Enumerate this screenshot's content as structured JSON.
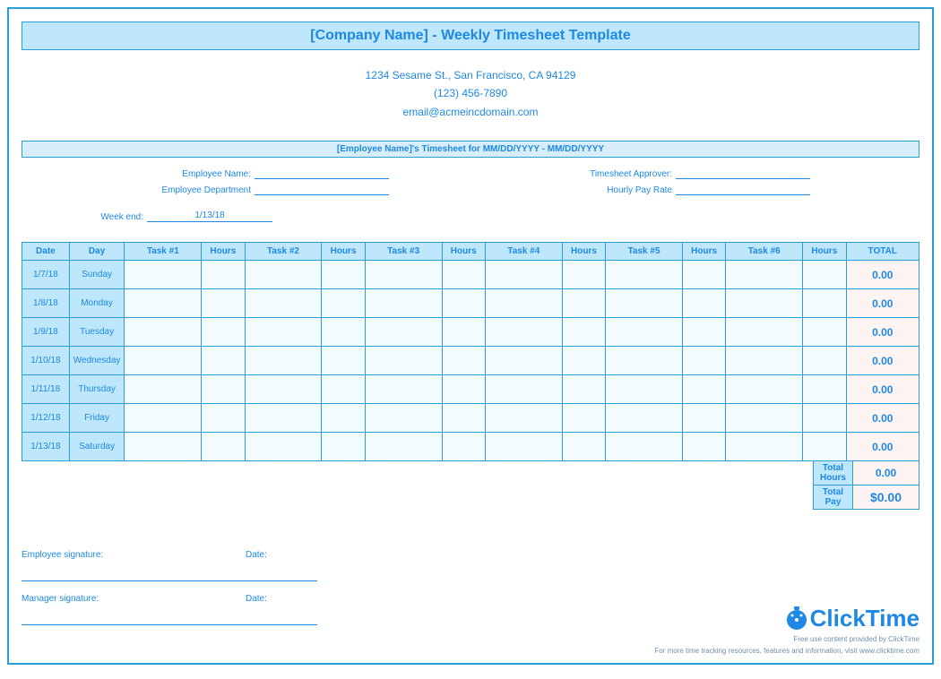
{
  "title": "[Company Name] - Weekly Timesheet Template",
  "company": {
    "address": "1234 Sesame St.,  San Francisco, CA 94129",
    "phone": "(123) 456-7890",
    "email": "email@acmeincdomain.com"
  },
  "subheader": "[Employee Name]'s Timesheet for MM/DD/YYYY - MM/DD/YYYY",
  "fields": {
    "employee_name_label": "Employee Name:",
    "employee_department_label": "Employee Department",
    "timesheet_approver_label": "Timesheet Approver:",
    "hourly_pay_rate_label": "Hourly Pay Rate",
    "week_end_label": "Week end:",
    "week_end_value": "1/13/18"
  },
  "table": {
    "headers": [
      "Date",
      "Day",
      "Task #1",
      "Hours",
      "Task #2",
      "Hours",
      "Task #3",
      "Hours",
      "Task #4",
      "Hours",
      "Task #5",
      "Hours",
      "Task #6",
      "Hours",
      "TOTAL"
    ],
    "rows": [
      {
        "date": "1/7/18",
        "day": "Sunday",
        "total": "0.00"
      },
      {
        "date": "1/8/18",
        "day": "Monday",
        "total": "0.00"
      },
      {
        "date": "1/9/18",
        "day": "Tuesday",
        "total": "0.00"
      },
      {
        "date": "1/10/18",
        "day": "Wednesday",
        "total": "0.00"
      },
      {
        "date": "1/11/18",
        "day": "Thursday",
        "total": "0.00"
      },
      {
        "date": "1/12/18",
        "day": "Friday",
        "total": "0.00"
      },
      {
        "date": "1/13/18",
        "day": "Saturday",
        "total": "0.00"
      }
    ],
    "colors": {
      "header_bg": "#bfe7fb",
      "cell_bg": "#f2fbff",
      "total_bg": "#fdf3f2",
      "border": "#2a9fd6",
      "text": "#1e88e5"
    }
  },
  "summary": {
    "total_hours_label": "Total Hours",
    "total_hours_value": "0.00",
    "total_pay_label": "Total Pay",
    "total_pay_value": "$0.00"
  },
  "signatures": {
    "employee_label": "Employee signature:",
    "manager_label": "Manager signature:",
    "date_label": "Date:"
  },
  "footer": {
    "brand": "ClickTime",
    "line1": "Free use content provided by ClickTime",
    "line2": "For more time tracking resources, features and information, visit www.clicktime.com"
  }
}
